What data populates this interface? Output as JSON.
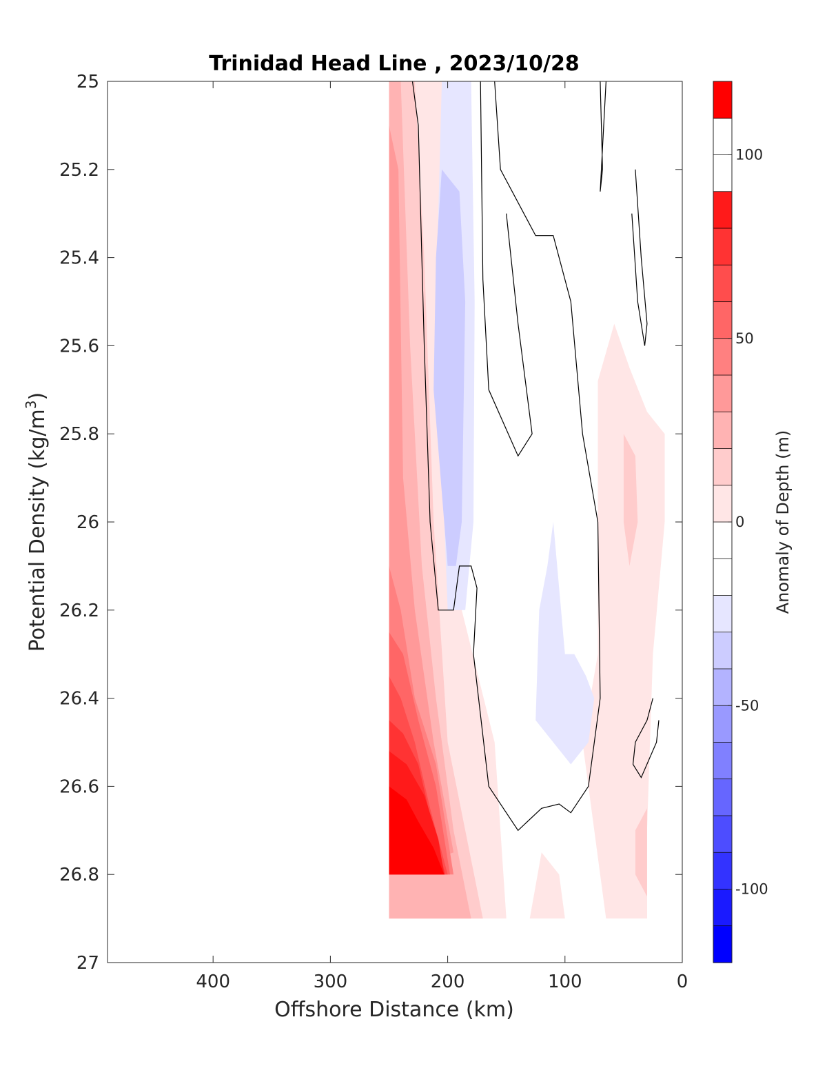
{
  "chart_data": {
    "type": "filled-contour",
    "title": "Trinidad Head Line , 2023/10/28",
    "xlabel": "Offshore Distance (km)",
    "ylabel": "Potential Density (kg/m³)",
    "ylabel_main": "Potential Density (kg/m",
    "ylabel_sup": "3",
    "ylabel_close": ")",
    "x_reversed": true,
    "y_reversed": true,
    "xlim": [
      0,
      490
    ],
    "ylim": [
      25,
      27
    ],
    "xticks": [
      400,
      300,
      200,
      100,
      0
    ],
    "yticks": [
      25,
      25.2,
      25.4,
      25.6,
      25.8,
      26,
      26.2,
      26.4,
      26.6,
      26.8,
      27
    ],
    "ytick_labels": [
      "25",
      "25.2",
      "25.4",
      "25.6",
      "25.8",
      "26",
      "26.2",
      "26.4",
      "26.6",
      "26.8",
      "27"
    ],
    "colorbar": {
      "label": "Anomaly of Depth (m)",
      "range": [
        -120,
        120
      ],
      "step": 10,
      "ticks": [
        100,
        50,
        0,
        -50,
        -100
      ],
      "colors": [
        "#0000FF",
        "#1A1AFF",
        "#3333FF",
        "#4D4DFF",
        "#6666FF",
        "#8080FF",
        "#9999FF",
        "#B3B3FF",
        "#CCCCFF",
        "#E6E6FF",
        "#FFFFFF",
        "#FFFFFF",
        "#FFE6E6",
        "#FFCCCC",
        "#FFB3B3",
        "#FF9999",
        "#FF8080",
        "#FF6666",
        "#FF4D4D",
        "#FF3333",
        "#FF1A1A",
        "#FF0000"
      ]
    },
    "region_colors": {
      "pos10": "#FFE6E6",
      "pos20": "#FFCCCC",
      "pos30": "#FFB3B3",
      "pos40": "#FF9999",
      "pos50": "#FF8080",
      "pos60": "#FF6666",
      "pos70": "#FF4D4D",
      "pos80": "#FF3333",
      "pos90": "#FF1A1A",
      "pos100": "#FF0000",
      "neg10": "#E6E6FF",
      "neg20": "#CCCCFF"
    },
    "regions": [
      {
        "level": "pos10",
        "points": [
          [
            250,
            25
          ],
          [
            180,
            25
          ],
          [
            188,
            25.3
          ],
          [
            188,
            26.2
          ],
          [
            160,
            26.5
          ],
          [
            150,
            26.9
          ],
          [
            250,
            26.9
          ]
        ]
      },
      {
        "level": "pos20",
        "points": [
          [
            250,
            25
          ],
          [
            228,
            25
          ],
          [
            220,
            25.4
          ],
          [
            212,
            26
          ],
          [
            200,
            26.5
          ],
          [
            185,
            26.7
          ],
          [
            170,
            26.9
          ],
          [
            250,
            26.9
          ]
        ]
      },
      {
        "level": "pos30",
        "points": [
          [
            250,
            25
          ],
          [
            240,
            25
          ],
          [
            232,
            25.6
          ],
          [
            222,
            26.1
          ],
          [
            210,
            26.4
          ],
          [
            195,
            26.7
          ],
          [
            180,
            26.9
          ],
          [
            250,
            26.9
          ]
        ]
      },
      {
        "level": "pos40",
        "points": [
          [
            250,
            25.1
          ],
          [
            242,
            25.2
          ],
          [
            238,
            25.9
          ],
          [
            228,
            26.2
          ],
          [
            212,
            26.5
          ],
          [
            195,
            26.75
          ],
          [
            250,
            26.8
          ]
        ]
      },
      {
        "level": "pos50",
        "points": [
          [
            250,
            26.1
          ],
          [
            240,
            26.2
          ],
          [
            228,
            26.4
          ],
          [
            210,
            26.55
          ],
          [
            195,
            26.8
          ],
          [
            250,
            26.8
          ]
        ]
      },
      {
        "level": "pos60",
        "points": [
          [
            250,
            26.25
          ],
          [
            238,
            26.3
          ],
          [
            225,
            26.45
          ],
          [
            210,
            26.6
          ],
          [
            198,
            26.8
          ],
          [
            250,
            26.8
          ]
        ]
      },
      {
        "level": "pos70",
        "points": [
          [
            250,
            26.35
          ],
          [
            240,
            26.4
          ],
          [
            228,
            26.5
          ],
          [
            215,
            26.65
          ],
          [
            200,
            26.8
          ],
          [
            250,
            26.8
          ]
        ]
      },
      {
        "level": "pos80",
        "points": [
          [
            250,
            26.45
          ],
          [
            238,
            26.48
          ],
          [
            225,
            26.55
          ],
          [
            212,
            26.7
          ],
          [
            202,
            26.8
          ],
          [
            250,
            26.8
          ]
        ]
      },
      {
        "level": "pos90",
        "points": [
          [
            250,
            26.52
          ],
          [
            235,
            26.55
          ],
          [
            220,
            26.62
          ],
          [
            208,
            26.72
          ],
          [
            203,
            26.8
          ],
          [
            250,
            26.8
          ]
        ]
      },
      {
        "level": "pos100",
        "points": [
          [
            250,
            26.6
          ],
          [
            235,
            26.63
          ],
          [
            225,
            26.68
          ],
          [
            212,
            26.74
          ],
          [
            203,
            26.8
          ],
          [
            250,
            26.8
          ]
        ]
      },
      {
        "level": "pos10",
        "points": [
          [
            72,
            25.68
          ],
          [
            58,
            25.55
          ],
          [
            45,
            25.65
          ],
          [
            30,
            25.75
          ],
          [
            15,
            25.8
          ],
          [
            15,
            26.0
          ],
          [
            25,
            26.3
          ],
          [
            30,
            26.7
          ],
          [
            30,
            26.9
          ],
          [
            65,
            26.9
          ],
          [
            75,
            26.7
          ],
          [
            85,
            26.5
          ],
          [
            72,
            26.3
          ]
        ]
      },
      {
        "level": "pos20",
        "points": [
          [
            50,
            25.8
          ],
          [
            40,
            25.85
          ],
          [
            38,
            26.0
          ],
          [
            45,
            26.1
          ],
          [
            50,
            26.0
          ]
        ]
      },
      {
        "level": "pos10",
        "points": [
          [
            50,
            26.6
          ],
          [
            40,
            26.55
          ],
          [
            30,
            26.6
          ],
          [
            30,
            26.9
          ],
          [
            45,
            26.8
          ],
          [
            55,
            26.7
          ]
        ]
      },
      {
        "level": "pos20",
        "points": [
          [
            40,
            26.7
          ],
          [
            30,
            26.65
          ],
          [
            30,
            26.85
          ],
          [
            40,
            26.8
          ]
        ]
      },
      {
        "level": "pos10",
        "points": [
          [
            120,
            26.75
          ],
          [
            130,
            26.9
          ],
          [
            100,
            26.9
          ],
          [
            105,
            26.8
          ]
        ]
      },
      {
        "level": "neg10",
        "points": [
          [
            205,
            25
          ],
          [
            180,
            25
          ],
          [
            177,
            25.5
          ],
          [
            178,
            26.0
          ],
          [
            185,
            26.2
          ],
          [
            200,
            26.2
          ],
          [
            210,
            25.5
          ]
        ]
      },
      {
        "level": "neg20",
        "points": [
          [
            205,
            25.2
          ],
          [
            190,
            25.25
          ],
          [
            185,
            25.5
          ],
          [
            188,
            26.0
          ],
          [
            193,
            26.1
          ],
          [
            200,
            26.1
          ],
          [
            212,
            25.7
          ],
          [
            210,
            25.4
          ]
        ]
      },
      {
        "level": "neg10",
        "points": [
          [
            110,
            26.0
          ],
          [
            100,
            26.3
          ],
          [
            92,
            26.3
          ],
          [
            82,
            26.35
          ],
          [
            75,
            26.4
          ],
          [
            80,
            26.5
          ],
          [
            95,
            26.55
          ],
          [
            125,
            26.45
          ],
          [
            122,
            26.2
          ],
          [
            115,
            26.1
          ]
        ]
      }
    ],
    "contour_lines": [
      [
        [
          230,
          25
        ],
        [
          225,
          25.1
        ],
        [
          222,
          25.4
        ],
        [
          220,
          25.6
        ],
        [
          215,
          26.0
        ],
        [
          208,
          26.2
        ],
        [
          195,
          26.2
        ],
        [
          190,
          26.1
        ],
        [
          180,
          26.1
        ],
        [
          175,
          26.15
        ],
        [
          178,
          26.3
        ],
        [
          165,
          26.6
        ],
        [
          140,
          26.7
        ],
        [
          120,
          26.65
        ],
        [
          105,
          26.64
        ],
        [
          95,
          26.66
        ],
        [
          80,
          26.6
        ],
        [
          70,
          26.4
        ],
        [
          72,
          26.0
        ],
        [
          85,
          25.8
        ],
        [
          95,
          25.5
        ],
        [
          110,
          25.35
        ],
        [
          125,
          25.35
        ],
        [
          135,
          25.3
        ],
        [
          155,
          25.2
        ],
        [
          160,
          25.0
        ]
      ],
      [
        [
          150,
          25.3
        ],
        [
          140,
          25.55
        ],
        [
          128,
          25.8
        ],
        [
          140,
          25.85
        ],
        [
          165,
          25.7
        ],
        [
          170,
          25.45
        ],
        [
          172,
          25.0
        ]
      ],
      [
        [
          70,
          25
        ],
        [
          68,
          25.2
        ],
        [
          70,
          25.25
        ],
        [
          65,
          25.0
        ]
      ],
      [
        [
          40,
          25.2
        ],
        [
          35,
          25.4
        ],
        [
          30,
          25.55
        ],
        [
          32,
          25.6
        ],
        [
          38,
          25.5
        ],
        [
          43,
          25.3
        ]
      ],
      [
        [
          25,
          26.4
        ],
        [
          30,
          26.45
        ],
        [
          40,
          26.5
        ],
        [
          42,
          26.55
        ],
        [
          35,
          26.58
        ],
        [
          22,
          26.5
        ],
        [
          20,
          26.45
        ]
      ]
    ]
  }
}
